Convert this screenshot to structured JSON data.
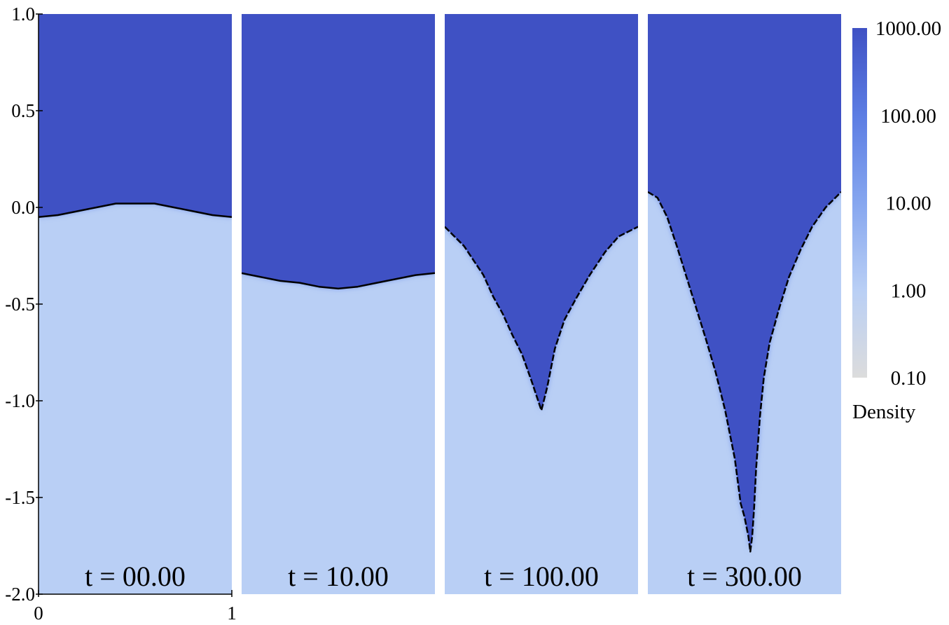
{
  "chart_data": {
    "type": "heatmap",
    "title": "",
    "xlabel": "",
    "ylabel": "",
    "xlim": [
      0,
      1
    ],
    "ylim": [
      -2.0,
      1.0
    ],
    "x_ticks": [
      "0",
      "1"
    ],
    "y_ticks": [
      "1.0",
      "0.5",
      "0.0",
      "-0.5",
      "-1.0",
      "-1.5",
      "-2.0"
    ],
    "y_tick_values": [
      1.0,
      0.5,
      0.0,
      -0.5,
      -1.0,
      -1.5,
      -2.0
    ],
    "colorbar": {
      "label": "Density",
      "scale": "log",
      "range": [
        0.1,
        1000
      ],
      "ticks": [
        "1000.00",
        "100.00",
        "10.00",
        "1.00",
        "0.10"
      ],
      "tick_values": [
        1000,
        100,
        10,
        1,
        0.1
      ],
      "colors": [
        "#dcdcdc",
        "#b9cff5",
        "#86a6ef",
        "#5c7de3",
        "#3f51c4"
      ]
    },
    "heavy_density": 1000,
    "light_density": 1,
    "heavy_color": "#3f51c4",
    "light_color": "#b9cff5",
    "interface_color": "#000000",
    "panels": [
      {
        "label": "t = 00.00",
        "interface_x": [
          0.0,
          0.1,
          0.2,
          0.3,
          0.4,
          0.5,
          0.6,
          0.7,
          0.8,
          0.9,
          1.0
        ],
        "interface_y": [
          -0.05,
          -0.04,
          -0.02,
          0.0,
          0.02,
          0.02,
          0.02,
          0.0,
          -0.02,
          -0.04,
          -0.05
        ]
      },
      {
        "label": "t = 10.00",
        "interface_x": [
          0.0,
          0.1,
          0.2,
          0.3,
          0.4,
          0.5,
          0.6,
          0.7,
          0.8,
          0.9,
          1.0
        ],
        "interface_y": [
          -0.34,
          -0.36,
          -0.38,
          -0.39,
          -0.41,
          -0.42,
          -0.41,
          -0.39,
          -0.37,
          -0.35,
          -0.34
        ]
      },
      {
        "label": "t = 100.00",
        "interface_x": [
          0.0,
          0.1,
          0.2,
          0.25,
          0.3,
          0.35,
          0.4,
          0.45,
          0.48,
          0.5,
          0.53,
          0.57,
          0.62,
          0.68,
          0.75,
          0.83,
          0.9,
          1.0
        ],
        "interface_y": [
          -0.1,
          -0.2,
          -0.35,
          -0.46,
          -0.55,
          -0.66,
          -0.76,
          -0.9,
          -0.99,
          -1.05,
          -0.93,
          -0.73,
          -0.58,
          -0.47,
          -0.35,
          -0.23,
          -0.15,
          -0.1
        ]
      },
      {
        "label": "t = 300.00",
        "interface_x": [
          0.0,
          0.05,
          0.1,
          0.15,
          0.2,
          0.25,
          0.3,
          0.35,
          0.4,
          0.45,
          0.48,
          0.5,
          0.52,
          0.53,
          0.54,
          0.55,
          0.56,
          0.58,
          0.6,
          0.63,
          0.68,
          0.73,
          0.79,
          0.85,
          0.92,
          1.0
        ],
        "interface_y": [
          0.08,
          0.05,
          -0.05,
          -0.2,
          -0.36,
          -0.52,
          -0.68,
          -0.85,
          -1.05,
          -1.3,
          -1.53,
          -1.6,
          -1.7,
          -1.78,
          -1.7,
          -1.55,
          -1.35,
          -1.08,
          -0.88,
          -0.7,
          -0.52,
          -0.36,
          -0.22,
          -0.1,
          0.0,
          0.08
        ]
      }
    ]
  }
}
